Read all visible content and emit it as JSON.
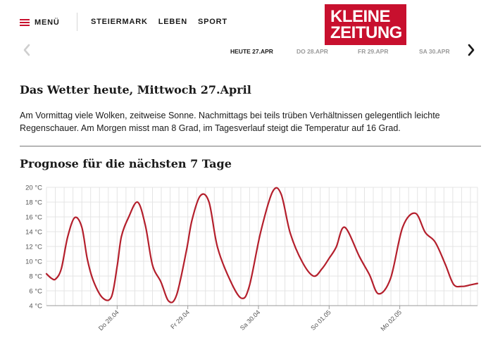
{
  "header": {
    "menu_label": "MENÜ",
    "nav": [
      {
        "label": "STEIERMARK"
      },
      {
        "label": "LEBEN"
      },
      {
        "label": "SPORT"
      }
    ],
    "logo": {
      "line1": "KLEINE",
      "line2": "ZEITUNG",
      "brand_color": "#c8102e"
    }
  },
  "day_nav": {
    "prev_icon": "chevron-left-icon",
    "next_icon": "chevron-right-icon",
    "tabs": [
      {
        "label": "HEUTE 27.APR",
        "active": true
      },
      {
        "label": "DO 28.APR",
        "active": false
      },
      {
        "label": "FR 29.APR",
        "active": false
      },
      {
        "label": "SA 30.APR",
        "active": false
      }
    ]
  },
  "weather": {
    "heading": "Das Wetter heute, Mittwoch 27.April",
    "text": "Am Vormittag viele Wolken, zeitweise Sonne. Nachmittags bei teils trüben Verhältnissen gelegentlich leichte Regenschauer. Am Morgen misst man 8 Grad, im Tagesverlauf steigt die Temperatur auf 16 Grad."
  },
  "prognose": {
    "heading": "Prognose für die nächsten 7 Tage"
  },
  "chart_data": {
    "type": "line",
    "line_color": "#b41f2c",
    "ylim": [
      4,
      20
    ],
    "y_ticks": [
      "4 °C",
      "6 °C",
      "8 °C",
      "10 °C",
      "12 °C",
      "14 °C",
      "16 °C",
      "18 °C",
      "20 °C"
    ],
    "x_tick_labels": [
      {
        "label": "Do 28.04",
        "day": 1
      },
      {
        "label": "Fr 29.04",
        "day": 2
      },
      {
        "label": "Sa 30.04",
        "day": 3
      },
      {
        "label": "So 01.05",
        "day": 4
      },
      {
        "label": "Mo 02.05",
        "day": 5
      }
    ],
    "x_range_days": [
      0,
      6.1
    ],
    "grid": true,
    "series": [
      {
        "x": [
          0,
          0.07,
          0.13,
          0.21,
          0.3,
          0.4,
          0.5,
          0.58,
          0.67,
          0.8,
          0.92,
          1.0,
          1.06,
          1.16,
          1.29,
          1.4,
          1.5,
          1.62,
          1.73,
          1.84,
          1.98,
          2.06,
          2.18,
          2.3,
          2.42,
          2.6,
          2.76,
          2.87,
          3.03,
          3.2,
          3.32,
          3.45,
          3.62,
          3.78,
          3.9,
          4.0,
          4.1,
          4.22,
          4.43,
          4.57,
          4.7,
          4.87,
          5.04,
          5.22,
          5.36,
          5.5,
          5.64,
          5.76,
          5.88,
          6.0,
          6.1
        ],
        "y": [
          8.3,
          7.7,
          7.6,
          9.0,
          13.3,
          15.9,
          14.6,
          10.2,
          7.2,
          5.0,
          5.2,
          9.3,
          13.3,
          15.9,
          18.0,
          14.8,
          9.5,
          7.2,
          4.6,
          5.4,
          11.4,
          15.6,
          18.9,
          18.0,
          11.9,
          7.4,
          5.0,
          6.6,
          13.9,
          19.4,
          19.1,
          13.8,
          9.9,
          8.0,
          9.0,
          10.4,
          11.9,
          14.6,
          10.6,
          8.2,
          5.6,
          7.7,
          14.6,
          16.5,
          13.9,
          12.6,
          9.7,
          6.9,
          6.6,
          6.8,
          7.0
        ]
      }
    ]
  }
}
